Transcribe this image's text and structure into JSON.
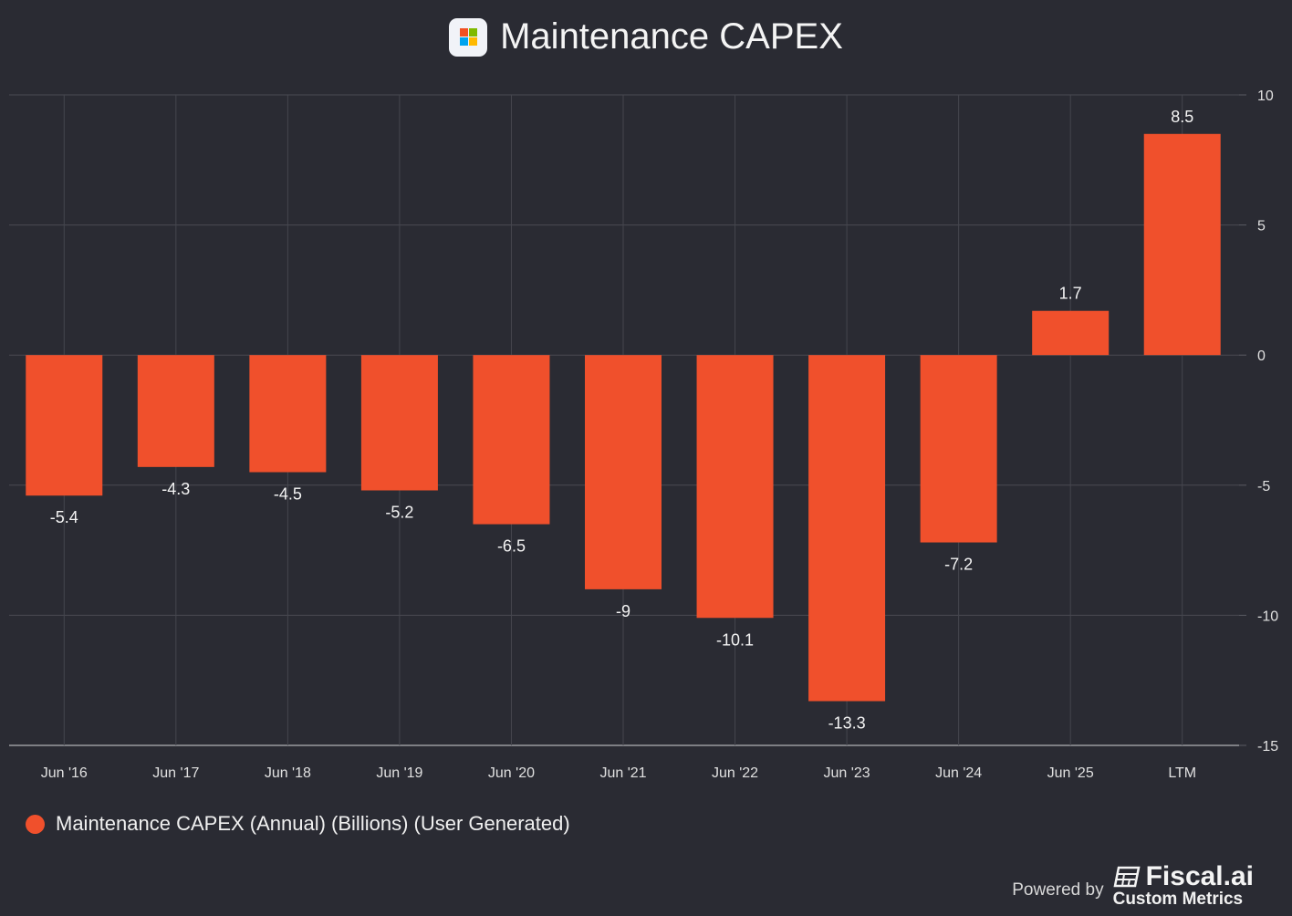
{
  "header": {
    "title": "Maintenance CAPEX",
    "logo_icon": "microsoft-logo-icon"
  },
  "chart_data": {
    "type": "bar",
    "title": "Maintenance CAPEX",
    "categories": [
      "Jun '16",
      "Jun '17",
      "Jun '18",
      "Jun '19",
      "Jun '20",
      "Jun '21",
      "Jun '22",
      "Jun '23",
      "Jun '24",
      "Jun '25",
      "LTM"
    ],
    "series": [
      {
        "name": "Maintenance CAPEX (Annual) (Billions) (User Generated)",
        "values": [
          -5.4,
          -4.3,
          -4.5,
          -5.2,
          -6.5,
          -9,
          -10.1,
          -13.3,
          -7.2,
          1.7,
          8.5
        ],
        "color": "#f0502c"
      }
    ],
    "data_labels": [
      "-5.4",
      "-4.3",
      "-4.5",
      "-5.2",
      "-6.5",
      "-9",
      "-10.1",
      "-13.3",
      "-7.2",
      "1.7",
      "8.5"
    ],
    "yticks": [
      "10",
      "5",
      "0",
      "-5",
      "-10",
      "-15"
    ],
    "ylim": [
      -15,
      10
    ],
    "y_axis_position": "right",
    "grid": true,
    "legend_position": "bottom-left",
    "xlabel": "",
    "ylabel": ""
  },
  "legend": {
    "label": "Maintenance CAPEX (Annual) (Billions) (User Generated)"
  },
  "footer": {
    "powered_by": "Powered by",
    "brand": "Fiscal.ai",
    "brand_sub": "Custom Metrics"
  }
}
